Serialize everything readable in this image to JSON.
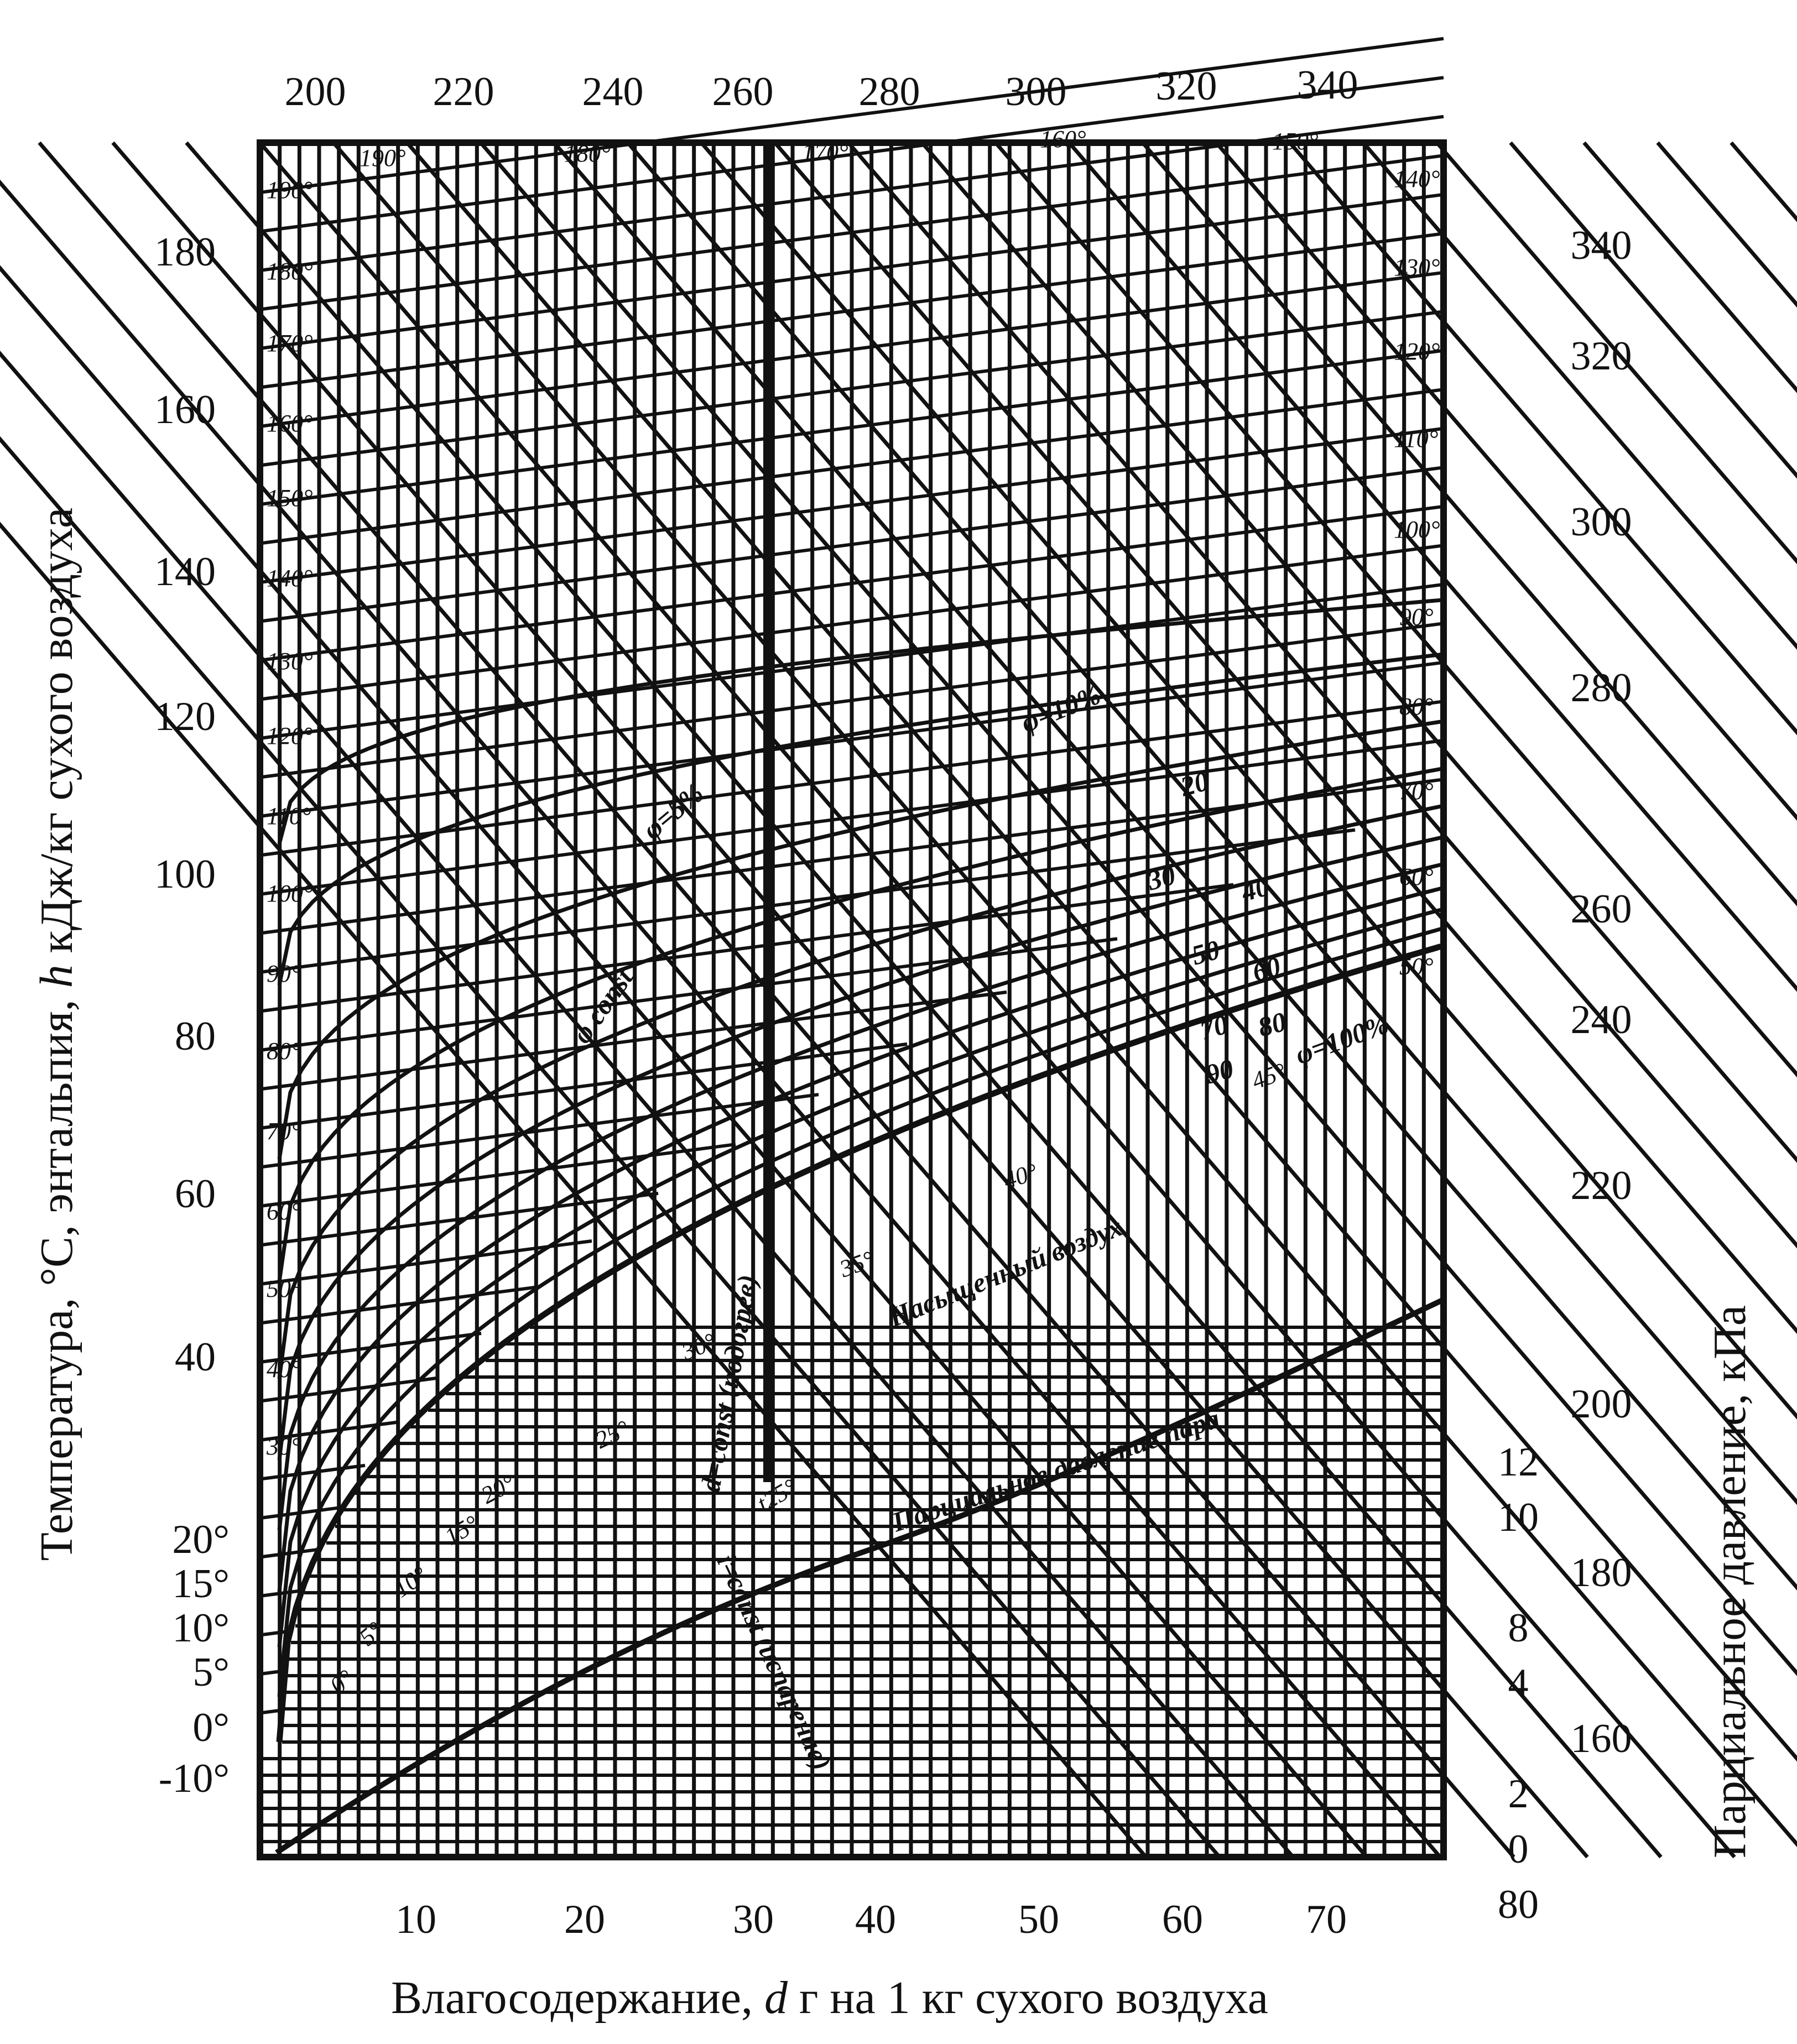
{
  "chart_data": {
    "type": "line",
    "title": "",
    "xlabel_parts": [
      "Влагосодержание, ",
      "d",
      " г на 1 кг сухого воздуха"
    ],
    "ylabel_left_parts": [
      "Температура, °С, энтальпия, ",
      "h",
      " кДж/кг сухого воздуха"
    ],
    "ylabel_right": "Парциальное давление, кПа",
    "x_ticks": [
      "10",
      "20",
      "30",
      "40",
      "50",
      "60",
      "70"
    ],
    "top_ticks": [
      "200",
      "220",
      "240",
      "260",
      "280",
      "300",
      "320",
      "340"
    ],
    "left_ticks": [
      "180",
      "160",
      "140",
      "120",
      "100",
      "80",
      "60",
      "40"
    ],
    "left_temp_ticks": [
      "20°",
      "15°",
      "10°",
      "5°",
      "0°",
      "-10°"
    ],
    "right_enthalpy_ticks": [
      "340",
      "320",
      "300",
      "280",
      "260",
      "240",
      "220",
      "200",
      "180",
      "160"
    ],
    "right_pressure_ticks": [
      "12",
      "10",
      "8",
      "4",
      "2",
      "0",
      "80"
    ],
    "isotherm_labels_left": [
      "190°",
      "180°",
      "170°",
      "160°",
      "150°",
      "140°",
      "130°",
      "120°",
      "110°",
      "100°",
      "90°",
      "80°",
      "70°",
      "60°",
      "50°",
      "40°",
      "30°"
    ],
    "isotherm_labels_top": [
      "190°",
      "180°",
      "170°",
      "160°",
      "150°"
    ],
    "isotherm_labels_right": [
      "140°",
      "130°",
      "120°",
      "110°",
      "100°",
      "90°",
      "80°",
      "70°",
      "60°",
      "50°"
    ],
    "saturation_temp_labels": [
      "0°",
      "5°",
      "10°",
      "15°",
      "20°",
      "25°",
      "30°",
      "35°",
      "40°",
      "45°"
    ],
    "phi_labels": [
      "φ=5%",
      "φ=10%",
      "20",
      "30",
      "40",
      "50",
      "60",
      "70",
      "80",
      "90",
      "φ=100%"
    ],
    "annotations": [
      "φ const",
      "Насыщенный воздух",
      "Парциальное давление пара",
      "d=const (подогрев)",
      "i=const (испарение)",
      "t25°"
    ],
    "xlim": [
      0,
      80
    ],
    "ylim": [
      -10,
      200
    ],
    "grid": true,
    "legend": "none"
  }
}
